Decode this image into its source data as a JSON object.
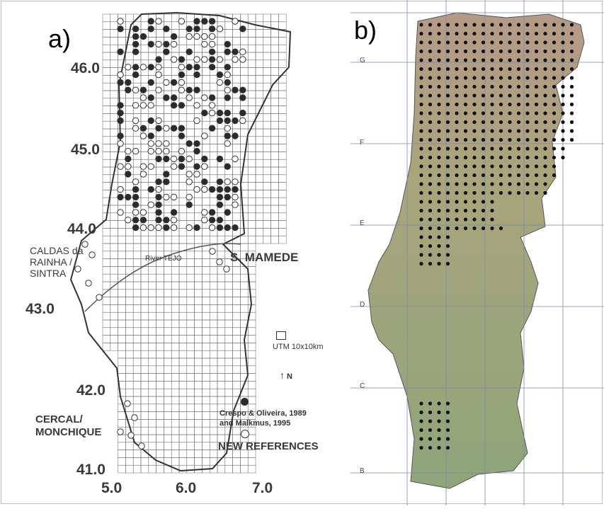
{
  "panel_a": {
    "label": "a)",
    "latitude_labels": [
      "46.0",
      "45.0",
      "44.0",
      "43.0",
      "42.0",
      "41.0"
    ],
    "longitude_labels": [
      "5.0",
      "6.0",
      "7.0"
    ],
    "places": {
      "caldas": "CALDAS da RAINHA / SINTRA",
      "caldas_l1": "CALDAS da",
      "caldas_l2": "RAINHA /",
      "caldas_l3": "SINTRA",
      "cercal_l1": "CERCAL/",
      "cercal_l2": "MONCHIQUE",
      "mamede": "S. MAMEDE",
      "river": "River TEJO"
    },
    "legend": {
      "grid": "UTM 10x10km",
      "north": "N",
      "filled_l1": "Crespo & Oliveira, 1989",
      "filled_l2": "and Malkmus, 1995",
      "open": "NEW REFERENCES"
    },
    "colors": {
      "filled": "#2b2b2b",
      "open": "#ffffff",
      "grid": "#555555"
    }
  },
  "panel_b": {
    "label": "b)",
    "row_labels": [
      "G",
      "F",
      "E",
      "D",
      "C",
      "B"
    ],
    "colors": {
      "dot": "#111111",
      "terrain_high": "#b79a86",
      "terrain_low": "#8fa57a",
      "grid": "#6f7fa8"
    }
  }
}
